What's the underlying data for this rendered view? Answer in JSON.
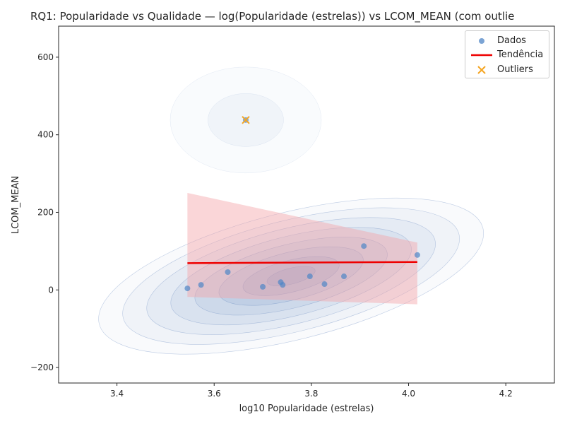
{
  "chart_data": {
    "type": "scatter",
    "title": "RQ1: Popularidade vs Qualidade — log(Popularidade (estrelas)) vs LCOM_MEAN (com outlie",
    "xlabel": "log10 Popularidade (estrelas)",
    "ylabel": "LCOM_MEAN",
    "xlim": [
      3.28,
      4.3
    ],
    "ylim": [
      -240,
      680
    ],
    "xticks": [
      3.4,
      3.6,
      3.8,
      4.0,
      4.2
    ],
    "xtick_labels": [
      "3.4",
      "3.6",
      "3.8",
      "4.0",
      "4.2"
    ],
    "yticks": [
      -200,
      0,
      200,
      400,
      600
    ],
    "ytick_labels": [
      "−200",
      "0",
      "200",
      "400",
      "600"
    ],
    "grid": false,
    "legend_position": "top-right",
    "series": [
      {
        "name": "Dados",
        "kind": "scatter",
        "color": "#4f86c6",
        "x": [
          3.545,
          3.573,
          3.628,
          3.7,
          3.737,
          3.741,
          3.797,
          3.827,
          3.867,
          3.908,
          4.018,
          3.665
        ],
        "y": [
          4,
          13,
          46,
          8,
          20,
          13,
          35,
          15,
          35,
          113,
          90,
          438
        ]
      },
      {
        "name": "Tendência",
        "kind": "line",
        "color": "#ee0000",
        "x": [
          3.545,
          4.018
        ],
        "y": [
          69,
          72
        ]
      },
      {
        "name": "Outliers",
        "kind": "scatter-x",
        "color": "#f5a623",
        "x": [
          3.665
        ],
        "y": [
          438
        ]
      }
    ],
    "confidence_band": {
      "color": "#f4a3a8",
      "x": [
        3.545,
        4.018
      ],
      "upper": [
        250,
        122
      ],
      "lower": [
        -18,
        -37
      ]
    },
    "density_contours": {
      "color": "#4a74b4",
      "levels": 8
    }
  }
}
